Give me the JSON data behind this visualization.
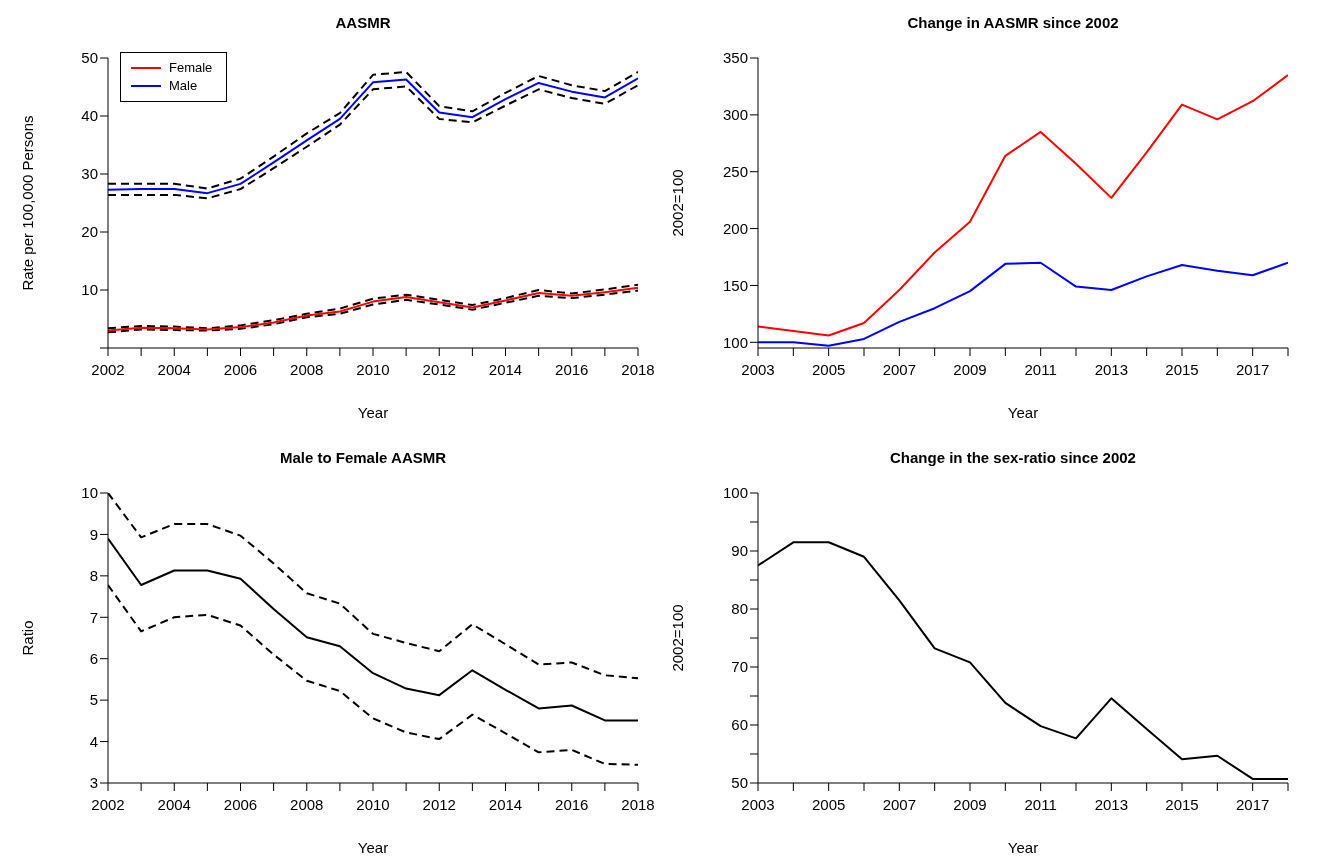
{
  "chart_data": [
    {
      "type": "line",
      "title": "AASMR",
      "xlabel": "Year",
      "ylabel": "Rate per 100,000 Persons",
      "legend": "top left",
      "x": [
        2002,
        2003,
        2004,
        2005,
        2006,
        2007,
        2008,
        2009,
        2010,
        2011,
        2012,
        2013,
        2014,
        2015,
        2016,
        2017,
        2018
      ],
      "xlim": [
        2002,
        2018
      ],
      "xticks": [
        2002,
        {
          "value": 2003,
          "label": null
        },
        2004,
        {
          "value": 2005,
          "label": null
        },
        2006,
        {
          "value": 2007,
          "label": null
        },
        2008,
        {
          "value": 2009,
          "label": null
        },
        2010,
        {
          "value": 2011,
          "label": null
        },
        2012,
        {
          "value": 2013,
          "label": null
        },
        2014,
        {
          "value": 2015,
          "label": null
        },
        2016,
        {
          "value": 2017,
          "label": null
        },
        2018
      ],
      "ylim": [
        0,
        50
      ],
      "yticks": [
        {
          "value": 0,
          "label": null
        },
        10,
        20,
        30,
        40,
        50
      ],
      "series": [
        {
          "color": "#000000",
          "line_style": "dashed",
          "values": [
            28.3,
            28.3,
            28.3,
            27.5,
            29.2,
            33,
            37,
            40.5,
            47.1,
            47.6,
            41.7,
            40.8,
            44,
            46.9,
            45.3,
            44.3,
            47.6
          ]
        },
        {
          "color": "#000000",
          "line_style": "dashed",
          "values": [
            26.4,
            26.4,
            26.4,
            25.8,
            27.4,
            31,
            34.7,
            38.5,
            44.6,
            45.1,
            39.5,
            38.9,
            41.8,
            44.6,
            43.1,
            42.1,
            45.3
          ]
        },
        {
          "color": "#000000",
          "line_style": "dashed",
          "values": [
            3.4,
            3.8,
            3.7,
            3.4,
            3.9,
            4.8,
            5.9,
            6.8,
            8.5,
            9.2,
            8.3,
            7.4,
            8.6,
            10.0,
            9.4,
            10.1,
            10.9
          ]
        },
        {
          "color": "#000000",
          "line_style": "dashed",
          "values": [
            2.7,
            3.2,
            3.1,
            3.0,
            3.3,
            4.1,
            5.3,
            5.9,
            7.5,
            8.3,
            7.5,
            6.6,
            7.8,
            9.0,
            8.6,
            9.2,
            9.9
          ]
        },
        {
          "name": "Female",
          "color": "#ff0000",
          "values": [
            3.0,
            3.5,
            3.4,
            3.2,
            3.6,
            4.4,
            5.6,
            6.3,
            8.0,
            8.8,
            7.9,
            7.0,
            8.2,
            9.5,
            9.0,
            9.6,
            10.4
          ]
        },
        {
          "name": "Male",
          "color": "#0000ff",
          "values": [
            27.3,
            27.4,
            27.4,
            26.7,
            28.3,
            32,
            35.8,
            39.5,
            45.8,
            46.3,
            40.6,
            39.8,
            42.9,
            45.7,
            44.2,
            43.2,
            46.5
          ]
        }
      ]
    },
    {
      "type": "line",
      "title": "Change in AASMR since 2002",
      "xlabel": "Year",
      "ylabel": "2002=100",
      "x": [
        2003,
        2004,
        2005,
        2006,
        2007,
        2008,
        2009,
        2010,
        2011,
        2012,
        2013,
        2014,
        2015,
        2016,
        2017,
        2018
      ],
      "xlim": [
        2003,
        2018
      ],
      "xticks": [
        2003,
        {
          "value": 2004,
          "label": null
        },
        2005,
        {
          "value": 2006,
          "label": null
        },
        2007,
        {
          "value": 2008,
          "label": null
        },
        2009,
        {
          "value": 2010,
          "label": null
        },
        2011,
        {
          "value": 2012,
          "label": null
        },
        2013,
        {
          "value": 2014,
          "label": null
        },
        2015,
        {
          "value": 2016,
          "label": null
        },
        2017,
        {
          "value": 2018,
          "label": null
        }
      ],
      "ylim": [
        95,
        350
      ],
      "yticks": [
        100,
        150,
        200,
        250,
        300,
        350
      ],
      "series": [
        {
          "color": "#ff0000",
          "values": [
            114,
            110,
            106,
            117,
            146,
            179,
            206,
            264,
            285,
            257,
            227,
            267,
            309,
            296,
            312,
            335
          ]
        },
        {
          "color": "#0000ff",
          "values": [
            100,
            100,
            97,
            103,
            118,
            130,
            145,
            169,
            170,
            149,
            146,
            158,
            168,
            163,
            159,
            170
          ]
        }
      ]
    },
    {
      "type": "line",
      "title": "Male to Female AASMR",
      "xlabel": "Year",
      "ylabel": "Ratio",
      "x": [
        2002,
        2003,
        2004,
        2005,
        2006,
        2007,
        2008,
        2009,
        2010,
        2011,
        2012,
        2013,
        2014,
        2015,
        2016,
        2017,
        2018
      ],
      "xlim": [
        2002,
        2018
      ],
      "xticks": [
        2002,
        {
          "value": 2003,
          "label": null
        },
        2004,
        {
          "value": 2005,
          "label": null
        },
        2006,
        {
          "value": 2007,
          "label": null
        },
        2008,
        {
          "value": 2009,
          "label": null
        },
        2010,
        {
          "value": 2011,
          "label": null
        },
        2012,
        {
          "value": 2013,
          "label": null
        },
        2014,
        {
          "value": 2015,
          "label": null
        },
        2016,
        {
          "value": 2017,
          "label": null
        },
        2018
      ],
      "ylim": [
        3,
        10
      ],
      "yticks": [
        3,
        4,
        5,
        6,
        7,
        8,
        9,
        10
      ],
      "series": [
        {
          "color": "#000000",
          "line_style": "dashed",
          "values": [
            10.0,
            8.93,
            9.25,
            9.25,
            8.97,
            8.3,
            7.58,
            7.33,
            6.6,
            6.38,
            6.18,
            6.83,
            6.35,
            5.86,
            5.91,
            5.6,
            5.53
          ]
        },
        {
          "color": "#000000",
          "line_style": "dashed",
          "values": [
            7.78,
            6.66,
            7.0,
            7.06,
            6.8,
            6.1,
            5.47,
            5.22,
            4.56,
            4.22,
            4.06,
            4.65,
            4.2,
            3.74,
            3.8,
            3.46,
            3.44
          ]
        },
        {
          "color": "#000000",
          "values": [
            8.9,
            7.78,
            8.13,
            8.13,
            7.93,
            7.2,
            6.52,
            6.3,
            5.65,
            5.28,
            5.12,
            5.72,
            5.25,
            4.8,
            4.87,
            4.51,
            4.51
          ]
        }
      ]
    },
    {
      "type": "line",
      "title": "Change in the sex-ratio since 2002",
      "xlabel": "Year",
      "ylabel": "2002=100",
      "x": [
        2003,
        2004,
        2005,
        2006,
        2007,
        2008,
        2009,
        2010,
        2011,
        2012,
        2013,
        2014,
        2015,
        2016,
        2017,
        2018
      ],
      "xlim": [
        2003,
        2018
      ],
      "xticks": [
        2003,
        {
          "value": 2004,
          "label": null
        },
        2005,
        {
          "value": 2006,
          "label": null
        },
        2007,
        {
          "value": 2008,
          "label": null
        },
        2009,
        {
          "value": 2010,
          "label": null
        },
        2011,
        {
          "value": 2012,
          "label": null
        },
        2013,
        {
          "value": 2014,
          "label": null
        },
        2015,
        {
          "value": 2016,
          "label": null
        },
        2017,
        {
          "value": 2018,
          "label": null
        }
      ],
      "ylim": [
        50,
        100
      ],
      "yticks": [
        50,
        {
          "value": 55,
          "label": null
        },
        60,
        {
          "value": 65,
          "label": null
        },
        70,
        {
          "value": 75,
          "label": null
        },
        80,
        {
          "value": 85,
          "label": null
        },
        90,
        {
          "value": 95,
          "label": null
        },
        100
      ],
      "series": [
        {
          "color": "#000000",
          "values": [
            87.5,
            91.5,
            91.5,
            89,
            81.5,
            73.2,
            70.8,
            63.8,
            59.8,
            57.7,
            64.6,
            59.3,
            54.1,
            54.7,
            50.7,
            50.7
          ]
        }
      ]
    }
  ]
}
